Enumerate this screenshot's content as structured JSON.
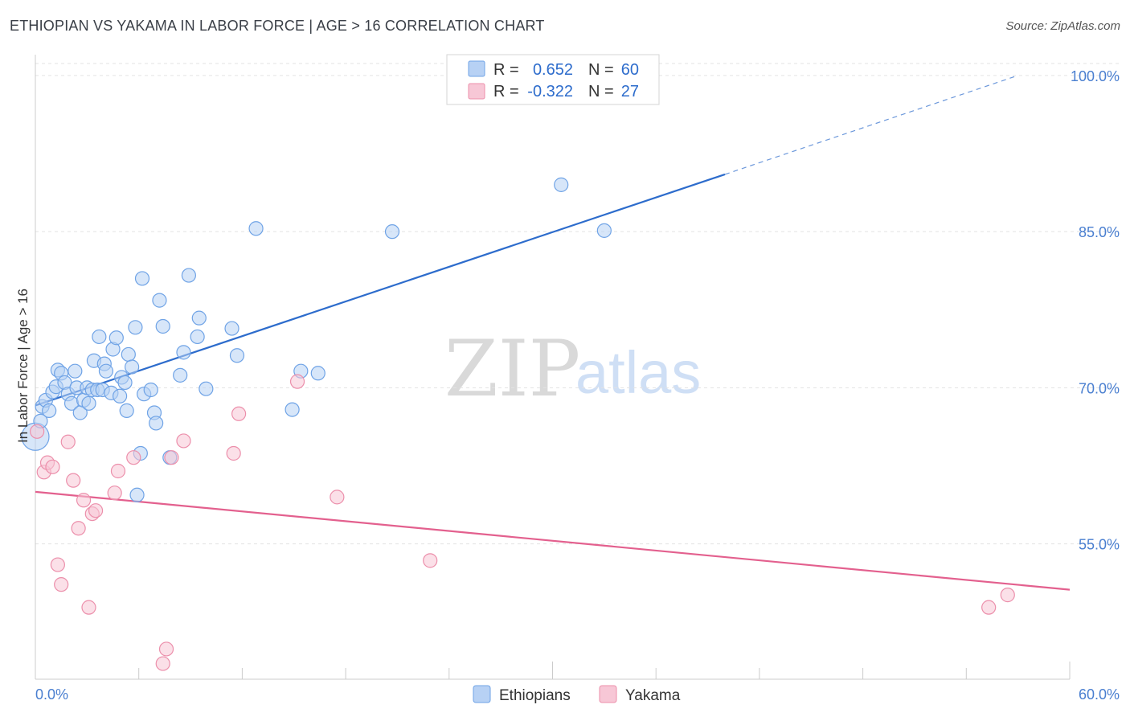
{
  "chart_data": {
    "type": "scatter",
    "title": "ETHIOPIAN VS YAKAMA IN LABOR FORCE | AGE > 16 CORRELATION CHART",
    "source": "Source: ZipAtlas.com",
    "xlabel": "",
    "ylabel": "In Labor Force | Age > 16",
    "xlim": [
      0,
      60
    ],
    "ylim": [
      42,
      102
    ],
    "x_tick_labels": [
      "0.0%",
      "60.0%"
    ],
    "y_ticks": [
      {
        "value": 100,
        "label": "100.0%"
      },
      {
        "value": 85,
        "label": "85.0%"
      },
      {
        "value": 70,
        "label": "70.0%"
      },
      {
        "value": 55,
        "label": "55.0%"
      }
    ],
    "watermark": {
      "zip": "ZIP",
      "atlas": "atlas"
    },
    "stats_legend": [
      {
        "r_label": "R =",
        "r_value": "0.652",
        "n_label": "N =",
        "n_value": "60"
      },
      {
        "r_label": "R =",
        "r_value": "-0.322",
        "n_label": "N =",
        "n_value": "27"
      }
    ],
    "series": [
      {
        "name": "Ethiopians",
        "color": "#6fa3e6",
        "fill": "#b7d1f4",
        "trend_color": "#2d6ccc",
        "trend": {
          "x0": 0,
          "y0": 68.3,
          "x1": 40,
          "y1": 90.5,
          "dash_to_x": 57,
          "dash_to_y": 100.0
        },
        "points": [
          [
            0.0,
            65.3
          ],
          [
            0.3,
            66.8
          ],
          [
            0.4,
            68.2
          ],
          [
            0.6,
            68.8
          ],
          [
            0.8,
            67.8
          ],
          [
            1.0,
            69.6
          ],
          [
            1.2,
            70.1
          ],
          [
            1.3,
            71.7
          ],
          [
            1.5,
            71.4
          ],
          [
            1.7,
            70.5
          ],
          [
            1.9,
            69.4
          ],
          [
            2.1,
            68.5
          ],
          [
            2.3,
            71.6
          ],
          [
            2.4,
            70.0
          ],
          [
            2.6,
            67.6
          ],
          [
            2.8,
            68.8
          ],
          [
            3.0,
            70.0
          ],
          [
            3.1,
            68.5
          ],
          [
            3.3,
            69.8
          ],
          [
            3.4,
            72.6
          ],
          [
            3.6,
            69.8
          ],
          [
            3.7,
            74.9
          ],
          [
            3.9,
            69.8
          ],
          [
            4.0,
            72.3
          ],
          [
            4.1,
            71.6
          ],
          [
            4.4,
            69.5
          ],
          [
            4.5,
            73.7
          ],
          [
            4.7,
            74.8
          ],
          [
            4.9,
            69.2
          ],
          [
            5.0,
            71.0
          ],
          [
            5.2,
            70.5
          ],
          [
            5.3,
            67.8
          ],
          [
            5.4,
            73.2
          ],
          [
            5.6,
            72.0
          ],
          [
            5.8,
            75.8
          ],
          [
            5.9,
            59.7
          ],
          [
            6.1,
            63.7
          ],
          [
            6.2,
            80.5
          ],
          [
            6.3,
            69.4
          ],
          [
            6.7,
            69.8
          ],
          [
            6.9,
            67.6
          ],
          [
            7.0,
            66.6
          ],
          [
            7.2,
            78.4
          ],
          [
            7.4,
            75.9
          ],
          [
            7.8,
            63.3
          ],
          [
            8.4,
            71.2
          ],
          [
            8.6,
            73.4
          ],
          [
            8.9,
            80.8
          ],
          [
            9.4,
            74.9
          ],
          [
            9.5,
            76.7
          ],
          [
            9.9,
            69.9
          ],
          [
            11.4,
            75.7
          ],
          [
            11.7,
            73.1
          ],
          [
            12.8,
            85.3
          ],
          [
            14.9,
            67.9
          ],
          [
            15.4,
            71.6
          ],
          [
            16.4,
            71.4
          ],
          [
            20.7,
            85.0
          ],
          [
            30.5,
            89.5
          ],
          [
            33.0,
            85.1
          ]
        ]
      },
      {
        "name": "Yakama",
        "color": "#ec8fab",
        "fill": "#f7c7d6",
        "trend_color": "#e3608e",
        "trend": {
          "x0": 0,
          "y0": 60.0,
          "x1": 60,
          "y1": 50.6
        },
        "points": [
          [
            0.1,
            65.8
          ],
          [
            0.5,
            61.9
          ],
          [
            0.7,
            62.8
          ],
          [
            1.0,
            62.4
          ],
          [
            1.3,
            53.0
          ],
          [
            1.5,
            51.1
          ],
          [
            1.9,
            64.8
          ],
          [
            2.2,
            61.1
          ],
          [
            2.5,
            56.5
          ],
          [
            2.8,
            59.2
          ],
          [
            3.1,
            48.9
          ],
          [
            3.3,
            57.9
          ],
          [
            3.5,
            58.2
          ],
          [
            4.6,
            59.9
          ],
          [
            4.8,
            62.0
          ],
          [
            5.7,
            63.3
          ],
          [
            7.4,
            43.5
          ],
          [
            7.6,
            44.9
          ],
          [
            7.9,
            63.3
          ],
          [
            8.6,
            64.9
          ],
          [
            11.5,
            63.7
          ],
          [
            11.8,
            67.5
          ],
          [
            15.2,
            70.6
          ],
          [
            17.5,
            59.5
          ],
          [
            22.9,
            53.4
          ],
          [
            55.3,
            48.9
          ],
          [
            56.4,
            50.1
          ]
        ]
      }
    ]
  }
}
